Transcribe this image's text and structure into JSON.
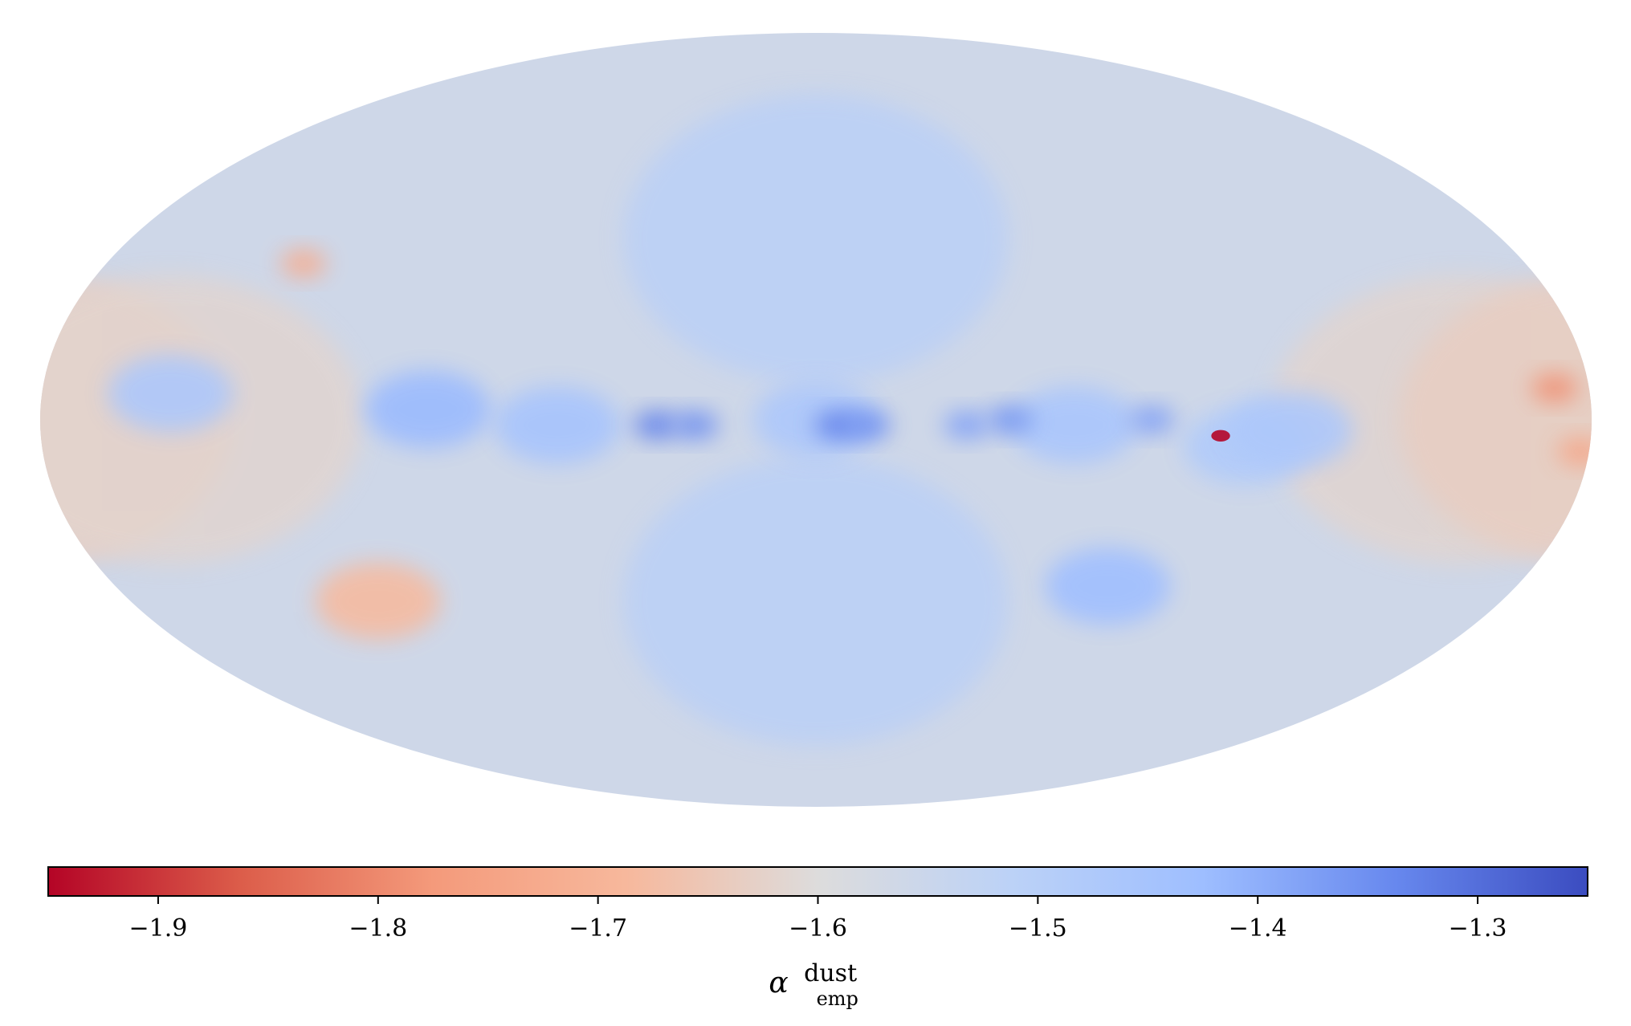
{
  "chart_data": {
    "type": "heatmap",
    "projection": "mollweide",
    "title": "",
    "colormap": "coolwarm_r",
    "colormap_stops": [
      "#b40426",
      "#dc5d4a",
      "#f49a7b",
      "#f7b89c",
      "#dddcdc",
      "#bcd2f7",
      "#9ebeff",
      "#6788ee",
      "#3b4cc0"
    ],
    "vmin": -1.95,
    "vmax": -1.25,
    "background_value": -1.56,
    "colorbar": {
      "orientation": "horizontal",
      "ticks": [
        -1.9,
        -1.8,
        -1.7,
        -1.6,
        -1.5,
        -1.4,
        -1.3
      ],
      "tick_labels": [
        "−1.9",
        "−1.8",
        "−1.7",
        "−1.6",
        "−1.5",
        "−1.4",
        "−1.3"
      ],
      "label_symbol": "α",
      "label_superscript": "dust",
      "label_subscript": "emp"
    },
    "features": [
      {
        "lon": 180,
        "lat": 0,
        "value": -1.64
      },
      {
        "lon": 150,
        "lat": 0,
        "value": -1.62
      },
      {
        "lon": -150,
        "lat": 0,
        "value": -1.62
      },
      {
        "lon": -180,
        "lat": 0,
        "value": -1.64
      },
      {
        "lon": 130,
        "lat": 30,
        "value": -1.72
      },
      {
        "lon": 0,
        "lat": 35,
        "value": -1.5
      },
      {
        "lon": 0,
        "lat": -35,
        "value": -1.5
      },
      {
        "lon": 0,
        "lat": 0,
        "value": -1.47
      },
      {
        "lon": 60,
        "lat": -1,
        "value": -1.45
      },
      {
        "lon": -60,
        "lat": -1,
        "value": -1.46
      },
      {
        "lon": 37,
        "lat": -1,
        "value": -1.33
      },
      {
        "lon": 28,
        "lat": -1,
        "value": -1.35
      },
      {
        "lon": -5,
        "lat": -1,
        "value": -1.33
      },
      {
        "lon": -12,
        "lat": -1,
        "value": -1.35
      },
      {
        "lon": -45,
        "lat": 0,
        "value": -1.36
      },
      {
        "lon": -78,
        "lat": 0,
        "value": -1.38
      },
      {
        "lon": 90,
        "lat": 2,
        "value": -1.42
      },
      {
        "lon": -35,
        "lat": -1,
        "value": -1.38
      },
      {
        "lon": -75,
        "lat": -32,
        "value": -1.43
      },
      {
        "lon": 150,
        "lat": 5,
        "value": -1.47
      },
      {
        "lon": -100,
        "lat": -5,
        "value": -1.48
      },
      {
        "lon": -110,
        "lat": -2,
        "value": -1.47
      },
      {
        "lon": -94,
        "lat": -3,
        "value": -1.95
      },
      {
        "lon": -172,
        "lat": 6,
        "value": -1.79
      },
      {
        "lon": -178,
        "lat": -6,
        "value": -1.74
      },
      {
        "lon": 115,
        "lat": -35,
        "value": -1.68
      }
    ]
  }
}
